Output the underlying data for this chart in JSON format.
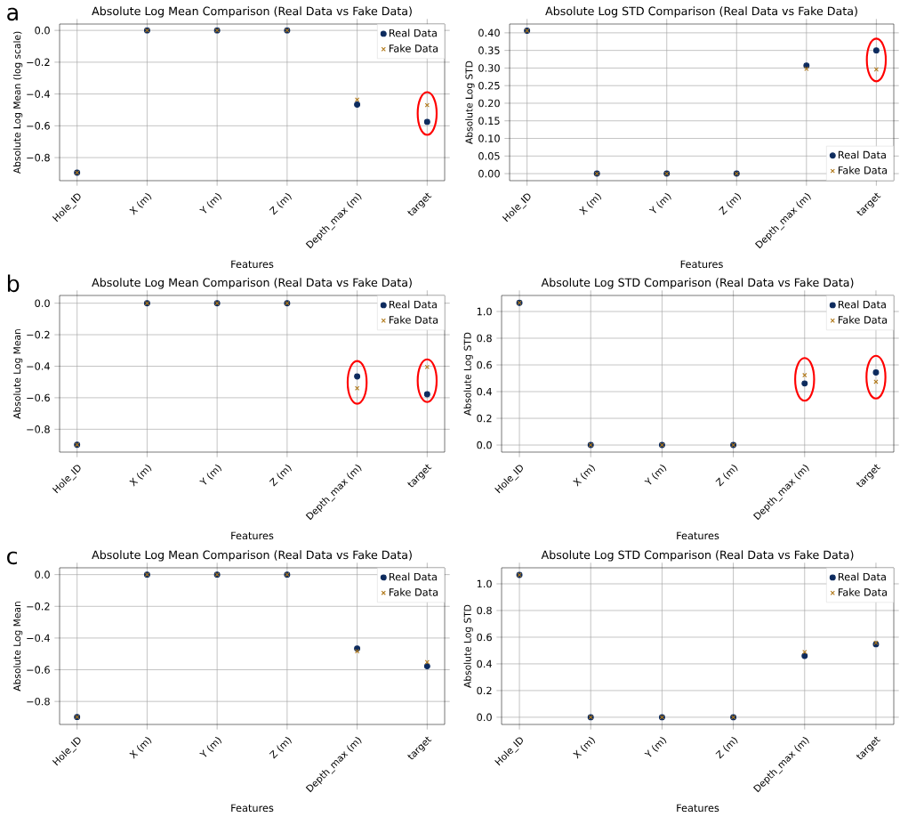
{
  "chart_data": [
    {
      "type": "scatter",
      "title": "Absolute Log Mean Comparison (Real Data vs Fake Data)",
      "xlabel": "Features",
      "ylabel": "Absolute Log Mean (log scale)",
      "categories": [
        "Hole_ID",
        "X (m)",
        "Y (m)",
        "Z (m)",
        "Depth_max (m)",
        "target"
      ],
      "series": [
        {
          "name": "Real Data",
          "color": "#0d2b5e",
          "marker": "circle",
          "values": [
            -0.895,
            0,
            0,
            0,
            -0.466,
            -0.575
          ]
        },
        {
          "name": "Fake Data",
          "color": "#b07818",
          "marker": "cross",
          "values": [
            -0.895,
            0,
            0,
            0,
            -0.436,
            -0.47
          ]
        }
      ],
      "ylim": [
        -0.945,
        0.04
      ],
      "yticks": [
        {
          "value": -0.8,
          "label": "−0.8"
        },
        {
          "value": -0.6,
          "label": "−0.6"
        },
        {
          "value": -0.4,
          "label": "−0.4"
        },
        {
          "value": -0.2,
          "label": "−0.2"
        },
        {
          "value": 0,
          "label": "0.0"
        }
      ],
      "grid": true,
      "legend": "top right",
      "annotations": [
        "a"
      ]
    },
    {
      "type": "scatter",
      "title": "Absolute Log STD Comparison (Real Data vs Fake Data)",
      "xlabel": "Features",
      "ylabel": "Absolute Log STD",
      "categories": [
        "Hole_ID",
        "X (m)",
        "Y (m)",
        "Z (m)",
        "Depth_max (m)",
        "target"
      ],
      "series": [
        {
          "name": "Real Data",
          "color": "#0d2b5e",
          "marker": "circle",
          "values": [
            0.406,
            0,
            0,
            0,
            0.307,
            0.35
          ]
        },
        {
          "name": "Fake Data",
          "color": "#b07818",
          "marker": "cross",
          "values": [
            0.406,
            0,
            0,
            0,
            0.298,
            0.296
          ]
        }
      ],
      "ylim": [
        -0.02,
        0.425
      ],
      "yticks": [
        {
          "value": 0,
          "label": "0.00"
        },
        {
          "value": 0.05,
          "label": "0.05"
        },
        {
          "value": 0.1,
          "label": "0.10"
        },
        {
          "value": 0.15,
          "label": "0.15"
        },
        {
          "value": 0.2,
          "label": "0.20"
        },
        {
          "value": 0.25,
          "label": "0.25"
        },
        {
          "value": 0.3,
          "label": "0.30"
        },
        {
          "value": 0.35,
          "label": "0.35"
        },
        {
          "value": 0.4,
          "label": "0.40"
        }
      ],
      "grid": true,
      "legend": "bottom right"
    },
    {
      "type": "scatter",
      "title": "Absolute Log Mean Comparison (Real Data vs Fake Data)",
      "xlabel": "Features",
      "ylabel": "Absolute Log Mean",
      "categories": [
        "Hole_ID",
        "X (m)",
        "Y (m)",
        "Z (m)",
        "Depth_max (m)",
        "target"
      ],
      "series": [
        {
          "name": "Real Data",
          "color": "#0d2b5e",
          "marker": "circle",
          "values": [
            -0.898,
            0,
            0,
            0,
            -0.465,
            -0.578
          ]
        },
        {
          "name": "Fake Data",
          "color": "#b07818",
          "marker": "cross",
          "values": [
            -0.898,
            0,
            0,
            0,
            -0.54,
            -0.405
          ]
        }
      ],
      "ylim": [
        -0.945,
        0.049
      ],
      "yticks": [
        {
          "value": -0.8,
          "label": "−0.8"
        },
        {
          "value": -0.6,
          "label": "−0.6"
        },
        {
          "value": -0.4,
          "label": "−0.4"
        },
        {
          "value": -0.2,
          "label": "−0.2"
        },
        {
          "value": 0,
          "label": "0.0"
        }
      ],
      "grid": true,
      "legend": "top right",
      "annotations": [
        "b"
      ]
    },
    {
      "type": "scatter",
      "title": "Absolute Log STD Comparison (Real Data vs Fake Data)",
      "xlabel": "Features",
      "ylabel": "Absolute Log STD",
      "categories": [
        "Hole_ID",
        "X (m)",
        "Y (m)",
        "Z (m)",
        "Depth_max (m)",
        "target"
      ],
      "series": [
        {
          "name": "Real Data",
          "color": "#0d2b5e",
          "marker": "circle",
          "values": [
            1.065,
            0,
            0,
            0,
            0.461,
            0.543
          ]
        },
        {
          "name": "Fake Data",
          "color": "#b07818",
          "marker": "cross",
          "values": [
            1.065,
            0,
            0,
            0,
            0.523,
            0.474
          ]
        }
      ],
      "ylim": [
        -0.053,
        1.12
      ],
      "yticks": [
        {
          "value": 0,
          "label": "0.0"
        },
        {
          "value": 0.2,
          "label": "0.2"
        },
        {
          "value": 0.4,
          "label": "0.4"
        },
        {
          "value": 0.6,
          "label": "0.6"
        },
        {
          "value": 0.8,
          "label": "0.8"
        },
        {
          "value": 1,
          "label": "1.0"
        }
      ],
      "grid": true,
      "legend": "top right"
    },
    {
      "type": "scatter",
      "title": "Absolute Log Mean Comparison (Real Data vs Fake Data)",
      "xlabel": "Features",
      "ylabel": "Absolute Log Mean",
      "categories": [
        "Hole_ID",
        "X (m)",
        "Y (m)",
        "Z (m)",
        "Depth_max (m)",
        "target"
      ],
      "series": [
        {
          "name": "Real Data",
          "color": "#0d2b5e",
          "marker": "circle",
          "values": [
            -0.898,
            0,
            0,
            0,
            -0.466,
            -0.578
          ]
        },
        {
          "name": "Fake Data",
          "color": "#b07818",
          "marker": "cross",
          "values": [
            -0.898,
            0,
            0,
            0,
            -0.483,
            -0.552
          ]
        }
      ],
      "ylim": [
        -0.945,
        0.043
      ],
      "yticks": [
        {
          "value": -0.8,
          "label": "−0.8"
        },
        {
          "value": -0.6,
          "label": "−0.6"
        },
        {
          "value": -0.4,
          "label": "−0.4"
        },
        {
          "value": -0.2,
          "label": "−0.2"
        },
        {
          "value": 0,
          "label": "0.0"
        }
      ],
      "grid": true,
      "legend": "top right",
      "annotations": [
        "c"
      ]
    },
    {
      "type": "scatter",
      "title": "Absolute Log STD Comparison (Real Data vs Fake Data)",
      "xlabel": "Features",
      "ylabel": "Absolute Log STD",
      "categories": [
        "Hole_ID",
        "X (m)",
        "Y (m)",
        "Z (m)",
        "Depth_max (m)",
        "target"
      ],
      "series": [
        {
          "name": "Real Data",
          "color": "#0d2b5e",
          "marker": "circle",
          "values": [
            1.067,
            0,
            0,
            0,
            0.46,
            0.547
          ]
        },
        {
          "name": "Fake Data",
          "color": "#b07818",
          "marker": "cross",
          "values": [
            1.067,
            0,
            0,
            0,
            0.489,
            0.558
          ]
        }
      ],
      "ylim": [
        -0.054,
        1.12
      ],
      "yticks": [
        {
          "value": 0,
          "label": "0.0"
        },
        {
          "value": 0.2,
          "label": "0.2"
        },
        {
          "value": 0.4,
          "label": "0.4"
        },
        {
          "value": 0.6,
          "label": "0.6"
        },
        {
          "value": 0.8,
          "label": "0.8"
        },
        {
          "value": 1,
          "label": "1.0"
        }
      ],
      "grid": true,
      "legend": "top right"
    }
  ]
}
